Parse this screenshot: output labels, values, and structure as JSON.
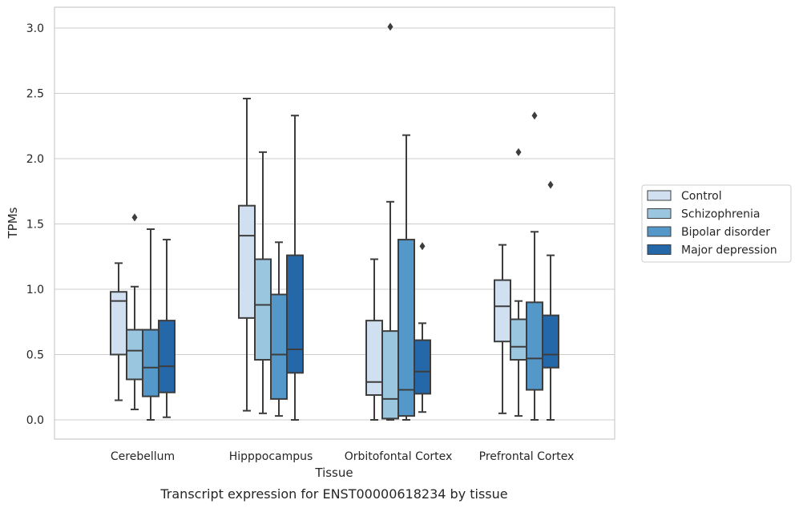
{
  "chart_data": {
    "type": "boxplot",
    "title": "Transcript expression for ENST00000618234 by tissue",
    "xlabel": "Tissue",
    "ylabel": "TPMs",
    "ylim": [
      -0.15,
      3.18
    ],
    "yticks": [
      "0.0",
      "0.5",
      "1.0",
      "1.5",
      "2.0",
      "2.5",
      "3.0"
    ],
    "grid": true,
    "legend_position": "right",
    "categories": [
      "Cerebellum",
      "Hipppocampus",
      "Orbitofontal Cortex",
      "Prefrontal Cortex"
    ],
    "series": [
      {
        "name": "Control",
        "color": "#d1e0f0",
        "boxes": [
          {
            "whisker_low": 0.15,
            "q1": 0.5,
            "median": 0.91,
            "q3": 0.98,
            "whisker_high": 1.2,
            "outliers": []
          },
          {
            "whisker_low": 0.07,
            "q1": 0.78,
            "median": 1.41,
            "q3": 1.64,
            "whisker_high": 2.46,
            "outliers": []
          },
          {
            "whisker_low": 0.0,
            "q1": 0.19,
            "median": 0.29,
            "q3": 0.76,
            "whisker_high": 1.23,
            "outliers": []
          },
          {
            "whisker_low": 0.05,
            "q1": 0.6,
            "median": 0.87,
            "q3": 1.07,
            "whisker_high": 1.34,
            "outliers": []
          }
        ]
      },
      {
        "name": "Schizophrenia",
        "color": "#9ac6df",
        "boxes": [
          {
            "whisker_low": 0.08,
            "q1": 0.31,
            "median": 0.53,
            "q3": 0.69,
            "whisker_high": 1.02,
            "outliers": [
              1.55
            ]
          },
          {
            "whisker_low": 0.05,
            "q1": 0.46,
            "median": 0.88,
            "q3": 1.23,
            "whisker_high": 2.05,
            "outliers": []
          },
          {
            "whisker_low": 0.0,
            "q1": 0.01,
            "median": 0.16,
            "q3": 0.68,
            "whisker_high": 1.67,
            "outliers": [
              3.01
            ]
          },
          {
            "whisker_low": 0.03,
            "q1": 0.46,
            "median": 0.56,
            "q3": 0.77,
            "whisker_high": 0.91,
            "outliers": [
              2.05
            ]
          }
        ]
      },
      {
        "name": "Bipolar disorder",
        "color": "#5398c8",
        "boxes": [
          {
            "whisker_low": 0.0,
            "q1": 0.18,
            "median": 0.4,
            "q3": 0.69,
            "whisker_high": 1.46,
            "outliers": []
          },
          {
            "whisker_low": 0.03,
            "q1": 0.16,
            "median": 0.5,
            "q3": 0.96,
            "whisker_high": 1.36,
            "outliers": []
          },
          {
            "whisker_low": 0.0,
            "q1": 0.03,
            "median": 0.23,
            "q3": 1.38,
            "whisker_high": 2.18,
            "outliers": []
          },
          {
            "whisker_low": 0.0,
            "q1": 0.23,
            "median": 0.47,
            "q3": 0.9,
            "whisker_high": 1.44,
            "outliers": [
              2.33
            ]
          }
        ]
      },
      {
        "name": "Major depression",
        "color": "#2468a9",
        "boxes": [
          {
            "whisker_low": 0.02,
            "q1": 0.21,
            "median": 0.41,
            "q3": 0.76,
            "whisker_high": 1.38,
            "outliers": []
          },
          {
            "whisker_low": 0.0,
            "q1": 0.36,
            "median": 0.54,
            "q3": 1.26,
            "whisker_high": 2.33,
            "outliers": []
          },
          {
            "whisker_low": 0.06,
            "q1": 0.2,
            "median": 0.37,
            "q3": 0.61,
            "whisker_high": 0.74,
            "outliers": [
              1.33
            ]
          },
          {
            "whisker_low": 0.0,
            "q1": 0.4,
            "median": 0.5,
            "q3": 0.8,
            "whisker_high": 1.26,
            "outliers": [
              1.8
            ]
          }
        ]
      }
    ]
  }
}
